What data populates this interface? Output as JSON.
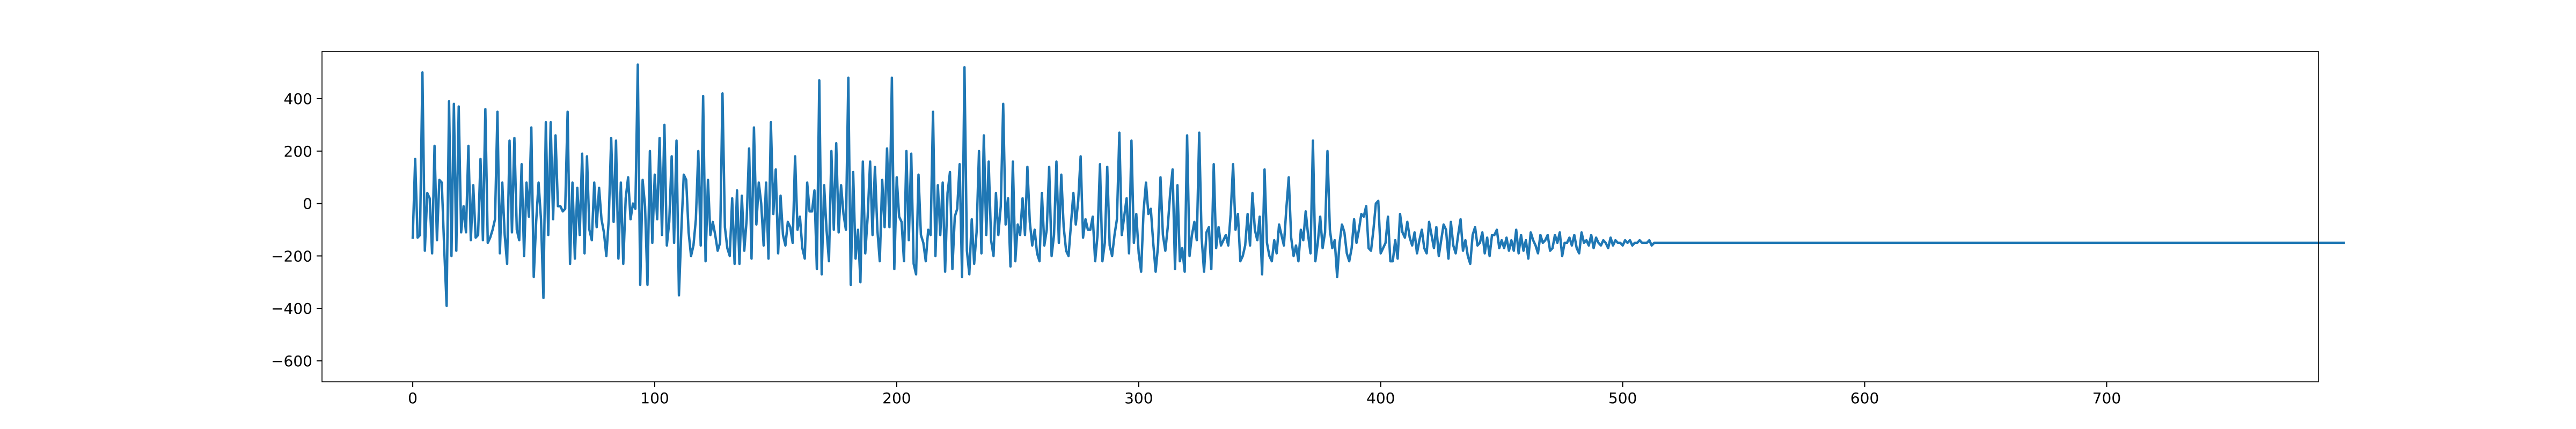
{
  "chart_data": {
    "type": "line",
    "title": "",
    "xlabel": "",
    "ylabel": "",
    "xlim": [
      -37.5,
      787.5
    ],
    "ylim": [
      -680,
      580
    ],
    "x_ticks": [
      0,
      100,
      200,
      300,
      400,
      500,
      600,
      700
    ],
    "y_ticks": [
      -600,
      -400,
      -200,
      0,
      200,
      400
    ],
    "grid": false,
    "legend": "none",
    "series": [
      {
        "color": "#1f77b4",
        "x_start": 0,
        "x_step": 1,
        "values": [
          -130,
          170,
          -130,
          -120,
          500,
          -180,
          40,
          20,
          -190,
          220,
          -140,
          90,
          80,
          -170,
          -390,
          390,
          -200,
          380,
          -180,
          370,
          -110,
          -10,
          -110,
          220,
          -140,
          70,
          -130,
          -120,
          170,
          -140,
          360,
          -150,
          -130,
          -100,
          -60,
          350,
          -190,
          80,
          -120,
          -230,
          240,
          -110,
          250,
          -100,
          -140,
          150,
          -200,
          80,
          -50,
          290,
          -280,
          -70,
          80,
          -60,
          -360,
          310,
          -120,
          310,
          -60,
          260,
          -10,
          -10,
          -30,
          -20,
          350,
          -230,
          80,
          -210,
          60,
          -120,
          190,
          -190,
          180,
          -100,
          -140,
          80,
          -90,
          60,
          -60,
          -110,
          -200,
          -60,
          250,
          -70,
          240,
          -210,
          80,
          -230,
          20,
          100,
          -60,
          0,
          -20,
          530,
          -310,
          90,
          -10,
          -310,
          200,
          -150,
          110,
          -60,
          250,
          -120,
          300,
          -160,
          -70,
          180,
          -150,
          240,
          -350,
          -100,
          110,
          90,
          -110,
          -200,
          -160,
          -60,
          200,
          -160,
          410,
          -220,
          90,
          -120,
          -70,
          -120,
          -180,
          -150,
          420,
          -90,
          -170,
          -200,
          20,
          -230,
          50,
          -230,
          30,
          -180,
          -60,
          210,
          -210,
          290,
          -80,
          80,
          0,
          -160,
          80,
          -210,
          310,
          -40,
          130,
          -190,
          30,
          -120,
          -160,
          -70,
          -90,
          -150,
          180,
          -100,
          -50,
          -170,
          -210,
          80,
          -30,
          -30,
          50,
          -250,
          470,
          -270,
          70,
          -100,
          -220,
          200,
          -100,
          230,
          -110,
          70,
          -40,
          -100,
          480,
          -310,
          120,
          -210,
          -100,
          -300,
          160,
          -190,
          -50,
          160,
          -120,
          140,
          -100,
          -220,
          90,
          -90,
          210,
          -90,
          480,
          -250,
          100,
          -50,
          -70,
          -220,
          200,
          -140,
          190,
          -230,
          -270,
          110,
          -120,
          -150,
          -220,
          -100,
          -120,
          350,
          -200,
          70,
          -120,
          80,
          -260,
          40,
          120,
          -250,
          -50,
          -20,
          150,
          -280,
          520,
          -180,
          -270,
          -60,
          -230,
          -110,
          200,
          -190,
          260,
          -120,
          160,
          -140,
          -200,
          40,
          -120,
          -10,
          380,
          -80,
          20,
          -240,
          160,
          -220,
          -80,
          -120,
          20,
          -120,
          140,
          -70,
          -160,
          -100,
          -190,
          -220,
          40,
          -160,
          -100,
          140,
          -200,
          -120,
          160,
          -150,
          110,
          -90,
          -180,
          -200,
          -80,
          40,
          -80,
          10,
          180,
          -130,
          -60,
          -100,
          -100,
          -50,
          -220,
          -120,
          150,
          -220,
          -150,
          140,
          -160,
          -200,
          -120,
          -60,
          270,
          -120,
          -50,
          20,
          -190,
          240,
          -150,
          -40,
          -190,
          -260,
          -30,
          80,
          -40,
          -20,
          -150,
          -260,
          -160,
          100,
          -120,
          -180,
          -90,
          40,
          130,
          -250,
          70,
          -220,
          -170,
          -260,
          260,
          -200,
          -120,
          -70,
          -140,
          270,
          -130,
          -260,
          -110,
          -90,
          -250,
          150,
          -170,
          -90,
          -160,
          -140,
          -120,
          -160,
          -40,
          150,
          -100,
          -40,
          -220,
          -200,
          -160,
          -40,
          -160,
          40,
          -100,
          -140,
          -50,
          -270,
          130,
          -150,
          -200,
          -220,
          -140,
          -190,
          -80,
          -120,
          -160,
          -20,
          100,
          -130,
          -200,
          -160,
          -220,
          -100,
          -140,
          -30,
          -120,
          -190,
          240,
          -220,
          -150,
          -50,
          -170,
          -110,
          200,
          -100,
          -170,
          -140,
          -280,
          -150,
          -80,
          -110,
          -190,
          -220,
          -170,
          -60,
          -150,
          -100,
          -40,
          -50,
          -10,
          -170,
          -180,
          -100,
          0,
          10,
          -190,
          -170,
          -150,
          -50,
          -220,
          -220,
          -140,
          -210,
          -40,
          -110,
          -130,
          -70,
          -130,
          -160,
          -110,
          -190,
          -140,
          -100,
          -170,
          -190,
          -70,
          -120,
          -170,
          -90,
          -200,
          -140,
          -80,
          -100,
          -210,
          -70,
          -160,
          -190,
          -120,
          -60,
          -180,
          -140,
          -200,
          -230,
          -120,
          -90,
          -160,
          -150,
          -110,
          -190,
          -130,
          -200,
          -120,
          -120,
          -100,
          -170,
          -140,
          -170,
          -130,
          -180,
          -140,
          -180,
          -100,
          -190,
          -120,
          -180,
          -140,
          -210,
          -110,
          -140,
          -160,
          -190,
          -120,
          -150,
          -140,
          -120,
          -180,
          -170,
          -120,
          -150,
          -110,
          -200,
          -150,
          -150,
          -130,
          -160,
          -120,
          -170,
          -190,
          -110,
          -150,
          -140,
          -160,
          -120,
          -170,
          -130,
          -150,
          -160,
          -140,
          -150,
          -170,
          -130,
          -160,
          -140,
          -150,
          -150,
          -160,
          -140,
          -150,
          -140,
          -160,
          -150,
          -150,
          -140,
          -150,
          -150,
          -150,
          -140,
          -160,
          -150,
          -150,
          -150,
          -150,
          -150,
          -150,
          -150,
          -150,
          -150,
          -150,
          -150,
          -150,
          -150,
          -150,
          -150,
          -150,
          -150,
          -150,
          -150,
          -150,
          -150,
          -150,
          -150,
          -150,
          -150,
          -150,
          -150,
          -150,
          -150,
          -150,
          -150,
          -150,
          -150,
          -150,
          -150,
          -150,
          -150,
          -150,
          -150,
          -150,
          -150,
          -150,
          -150,
          -150,
          -150,
          -150,
          -150,
          -150,
          -150,
          -150,
          -150,
          -150,
          -150,
          -150,
          -150,
          -150,
          -150,
          -150,
          -150,
          -150,
          -150,
          -150,
          -150,
          -150,
          -150,
          -150,
          -150,
          -150,
          -150,
          -150,
          -150,
          -150,
          -150,
          -150,
          -150,
          -150,
          -150,
          -150,
          -150,
          -150,
          -150,
          -150,
          -150,
          -150,
          -150,
          -150,
          -150,
          -150,
          -150,
          -150,
          -150,
          -150,
          -150,
          -150,
          -150,
          -150,
          -150,
          -150,
          -150,
          -150,
          -150,
          -150,
          -150,
          -150,
          -150,
          -150,
          -150,
          -150,
          -150,
          -150,
          -150,
          -150,
          -150,
          -150,
          -150,
          -150,
          -150,
          -150,
          -150,
          -150,
          -150,
          -150,
          -150,
          -150,
          -150,
          -150,
          -150,
          -150,
          -150,
          -150,
          -150,
          -150,
          -150,
          -150,
          -150,
          -150,
          -150,
          -150,
          -150,
          -150,
          -150,
          -150,
          -150,
          -150,
          -150,
          -150,
          -150,
          -150,
          -150,
          -150,
          -150,
          -150,
          -150,
          -150,
          -150,
          -150,
          -150,
          -150,
          -150,
          -150,
          -150,
          -150,
          -150,
          -150,
          -150,
          -150,
          -150,
          -150,
          -150,
          -150,
          -150,
          -150,
          -150,
          -150,
          -150,
          -150,
          -150,
          -150,
          -150,
          -150,
          -150,
          -150,
          -150,
          -150,
          -150,
          -150,
          -150,
          -150,
          -150,
          -150,
          -150,
          -150,
          -150,
          -150,
          -150,
          -150,
          -150,
          -150,
          -150,
          -150,
          -150,
          -150,
          -150,
          -150,
          -150,
          -150,
          -150,
          -150,
          -150,
          -150,
          -150,
          -150,
          -150,
          -150,
          -150,
          -150,
          -150,
          -150,
          -150,
          -150,
          -150,
          -150,
          -150,
          -150,
          -150,
          -150,
          -150,
          -150,
          -150,
          -150,
          -150,
          -150,
          -150,
          -150,
          -150,
          -150,
          -150,
          -150,
          -150,
          -150,
          -150,
          -150,
          -150,
          -150,
          -150,
          -150,
          -150,
          -150,
          -150,
          -150,
          -150,
          -150,
          -150,
          -150,
          -150,
          -150,
          -150,
          -150,
          -150,
          -150,
          -150,
          -150,
          -150,
          -150,
          -150,
          -150,
          -150,
          -150,
          -150,
          -150,
          -150,
          -150,
          -150,
          -150,
          -150,
          -150,
          -150,
          -150,
          -150,
          -150,
          -150,
          -150,
          -150,
          -150,
          -150,
          -150
        ]
      }
    ]
  }
}
